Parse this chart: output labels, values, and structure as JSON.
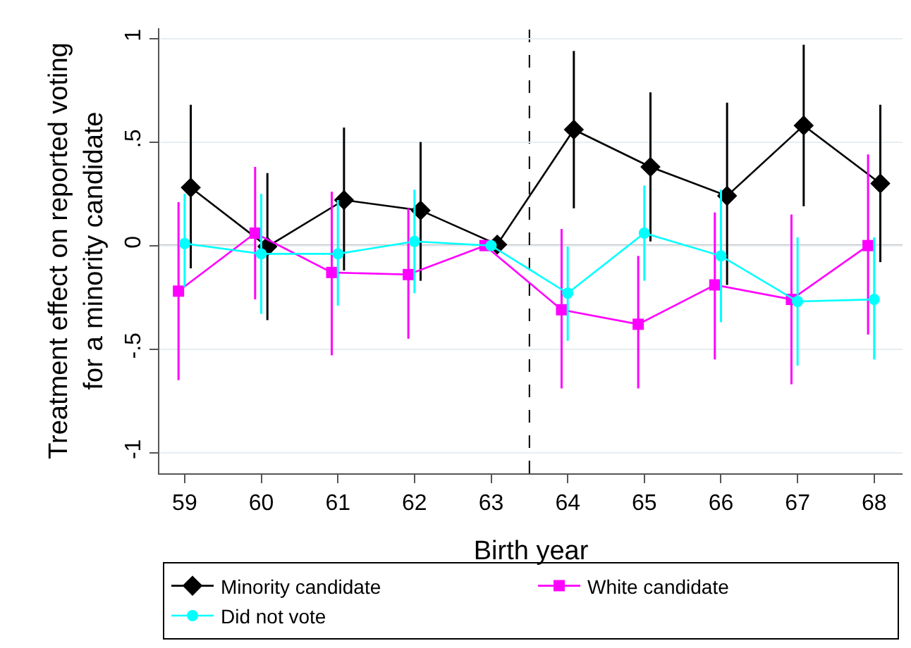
{
  "chart_data": {
    "type": "line",
    "xlabel": "Birth year",
    "ylabel": "Treatment effect on reported voting\nfor a minority candidate",
    "xlim": [
      58.67,
      68.37
    ],
    "xticks": [
      59,
      60,
      61,
      62,
      63,
      64,
      65,
      66,
      67,
      68
    ],
    "ylim": [
      -1.1,
      1.05
    ],
    "yticks": [
      {
        "value": -1,
        "label": "-1"
      },
      {
        "value": -0.5,
        "label": "-.5"
      },
      {
        "value": 0,
        "label": "0"
      },
      {
        "value": 0.5,
        "label": ".5"
      },
      {
        "value": 1,
        "label": "1"
      }
    ],
    "grid": "y",
    "legend": "bottom",
    "line_style": "solid",
    "ref_lines": [
      {
        "axis": "y",
        "value": 0,
        "color": "#000000",
        "line_style": "solid"
      },
      {
        "axis": "x",
        "value": 63.5,
        "color": "#000000",
        "line_style": "dashed"
      }
    ],
    "series": [
      {
        "name": "Minority candidate",
        "color": "#000000",
        "marker": "diamond",
        "x": [
          59.08,
          60.08,
          61.08,
          62.08,
          63.08,
          64.08,
          65.08,
          66.08,
          67.08,
          68.08
        ],
        "values": [
          0.28,
          -0.005,
          0.22,
          0.17,
          0.005,
          0.56,
          0.38,
          0.24,
          0.58,
          0.3
        ],
        "errors": [
          [
            -0.11,
            0.68
          ],
          [
            -0.36,
            0.35
          ],
          [
            -0.12,
            0.57
          ],
          [
            -0.17,
            0.5
          ],
          null,
          [
            0.18,
            0.94
          ],
          [
            0.02,
            0.74
          ],
          [
            -0.19,
            0.69
          ],
          [
            0.19,
            0.97
          ],
          [
            -0.08,
            0.68
          ]
        ]
      },
      {
        "name": "White candidate",
        "color": "#ff00ff",
        "marker": "square",
        "x": [
          58.92,
          59.92,
          60.92,
          61.92,
          62.92,
          63.92,
          64.92,
          65.92,
          66.92,
          67.92
        ],
        "values": [
          -0.22,
          0.06,
          -0.13,
          -0.14,
          0,
          -0.31,
          -0.38,
          -0.19,
          -0.26,
          0
        ],
        "errors": [
          [
            -0.65,
            0.21
          ],
          [
            -0.26,
            0.38
          ],
          [
            -0.53,
            0.26
          ],
          [
            -0.45,
            0.18
          ],
          null,
          [
            -0.69,
            0.08
          ],
          [
            -0.69,
            -0.05
          ],
          [
            -0.55,
            0.16
          ],
          [
            -0.67,
            0.15
          ],
          [
            -0.43,
            0.44
          ]
        ]
      },
      {
        "name": "Did not vote",
        "color": "#00ffff",
        "marker": "circle",
        "x": [
          59,
          60,
          61,
          62,
          63,
          64,
          65,
          66,
          67,
          68
        ],
        "values": [
          0.01,
          -0.04,
          -0.04,
          0.02,
          0,
          -0.23,
          0.06,
          -0.05,
          -0.27,
          -0.26
        ],
        "errors": [
          [
            -0.2,
            0.25
          ],
          [
            -0.33,
            0.25
          ],
          [
            -0.29,
            0.22
          ],
          [
            -0.23,
            0.27
          ],
          null,
          [
            -0.46,
            -0.005
          ],
          [
            -0.17,
            0.29
          ],
          [
            -0.37,
            0.27
          ],
          [
            -0.58,
            0.04
          ],
          [
            -0.55,
            0.04
          ]
        ]
      }
    ]
  }
}
